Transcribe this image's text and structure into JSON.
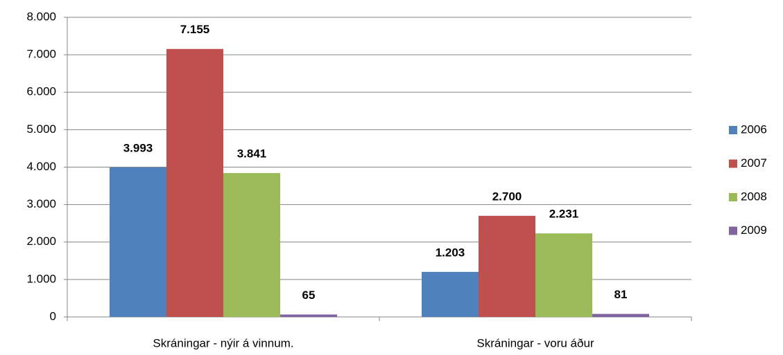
{
  "chart_data": {
    "type": "bar",
    "categories": [
      "Skráningar - nýir á vinnum.",
      "Skráningar - voru áður"
    ],
    "series": [
      {
        "name": "2006",
        "color": "#4f81bd",
        "values": [
          3993,
          1203
        ],
        "value_labels": [
          "3.993",
          "1.203"
        ]
      },
      {
        "name": "2007",
        "color": "#c0504d",
        "values": [
          7155,
          2700
        ],
        "value_labels": [
          "7.155",
          "2.700"
        ]
      },
      {
        "name": "2008",
        "color": "#9bbb59",
        "values": [
          3841,
          2231
        ],
        "value_labels": [
          "3.841",
          "2.231"
        ]
      },
      {
        "name": "2009",
        "color": "#8064a2",
        "values": [
          65,
          81
        ],
        "value_labels": [
          "65",
          "81"
        ]
      }
    ],
    "ylim": [
      0,
      8000
    ],
    "yticks": [
      0,
      {
        "value": 1000,
        "label": "1.000"
      },
      {
        "value": 2000,
        "label": "2.000"
      },
      {
        "value": 3000,
        "label": "3.000"
      },
      {
        "value": 4000,
        "label": "4.000"
      },
      {
        "value": 5000,
        "label": "5.000"
      },
      {
        "value": 6000,
        "label": "6.000"
      },
      {
        "value": 7000,
        "label": "7.000"
      },
      {
        "value": 8000,
        "label": "8.000"
      }
    ],
    "grid": true,
    "legend": "right"
  }
}
